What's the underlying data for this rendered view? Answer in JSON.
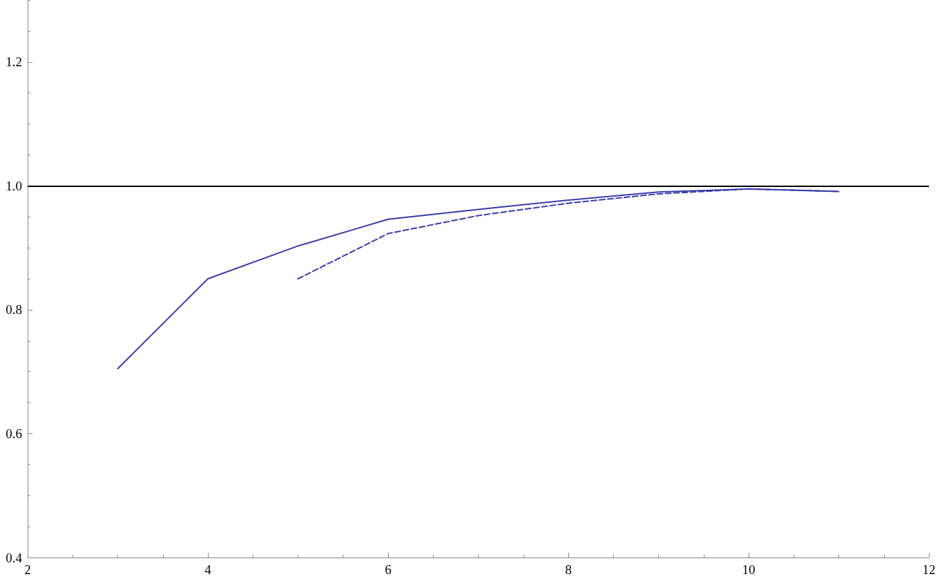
{
  "chart_data": {
    "type": "line",
    "marker": "none",
    "x": [
      3,
      4,
      5,
      6,
      7,
      8,
      9,
      10,
      11
    ],
    "series": [
      {
        "color": "#3b3ba8",
        "line_style": "solid",
        "values": [
          0.705,
          0.85,
          0.903,
          0.946,
          0.962,
          0.977,
          0.99,
          0.995,
          0.991
        ]
      },
      {
        "color": "#3b3ba8",
        "line_style": "dashed",
        "values": [
          null,
          null,
          0.85,
          0.923,
          0.952,
          0.972,
          0.987,
          0.995,
          0.991
        ]
      }
    ],
    "xlim": [
      2,
      12
    ],
    "xticks": [
      2,
      4,
      6,
      8,
      10,
      12
    ],
    "ylim": [
      0.4,
      1.3
    ],
    "yticks": [
      0.4,
      0.6,
      0.8,
      {
        "value": 1.0,
        "label": "1.0"
      },
      1.2
    ],
    "ref_lines": [
      {
        "axis": "y",
        "value": 1.0,
        "color": "#000000"
      }
    ]
  }
}
